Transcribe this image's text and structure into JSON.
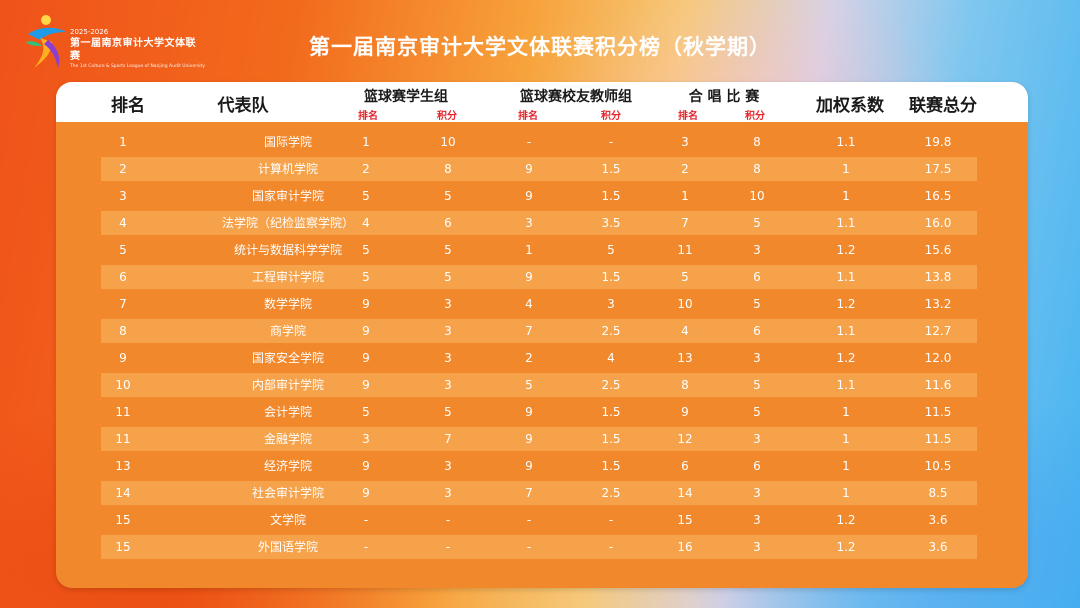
{
  "logo": {
    "years": "2025-2026",
    "name": "第一届南京审计大学文体联赛",
    "english": "The 1st Culture & Sports League of Nanjing Audit University"
  },
  "title": "第一届南京审计大学文体联赛积分榜（秋学期）",
  "headers": {
    "rank": "排名",
    "team": "代表队",
    "basketball_student": "篮球赛学生组",
    "basketball_alumni": "篮球赛校友教师组",
    "chorus": "合 唱 比 赛",
    "weight": "加权系数",
    "total": "联赛总分",
    "sub_rank": "排名",
    "sub_points": "积分"
  },
  "rows": [
    {
      "rank": "1",
      "team": "国际学院",
      "bs_rank": "1",
      "bs_pts": "10",
      "ba_rank": "-",
      "ba_pts": "-",
      "ch_rank": "3",
      "ch_pts": "8",
      "weight": "1.1",
      "total": "19.8"
    },
    {
      "rank": "2",
      "team": "计算机学院",
      "bs_rank": "2",
      "bs_pts": "8",
      "ba_rank": "9",
      "ba_pts": "1.5",
      "ch_rank": "2",
      "ch_pts": "8",
      "weight": "1",
      "total": "17.5"
    },
    {
      "rank": "3",
      "team": "国家审计学院",
      "bs_rank": "5",
      "bs_pts": "5",
      "ba_rank": "9",
      "ba_pts": "1.5",
      "ch_rank": "1",
      "ch_pts": "10",
      "weight": "1",
      "total": "16.5"
    },
    {
      "rank": "4",
      "team": "法学院（纪检监察学院）",
      "bs_rank": "4",
      "bs_pts": "6",
      "ba_rank": "3",
      "ba_pts": "3.5",
      "ch_rank": "7",
      "ch_pts": "5",
      "weight": "1.1",
      "total": "16.0"
    },
    {
      "rank": "5",
      "team": "统计与数据科学学院",
      "bs_rank": "5",
      "bs_pts": "5",
      "ba_rank": "1",
      "ba_pts": "5",
      "ch_rank": "11",
      "ch_pts": "3",
      "weight": "1.2",
      "total": "15.6"
    },
    {
      "rank": "6",
      "team": "工程审计学院",
      "bs_rank": "5",
      "bs_pts": "5",
      "ba_rank": "9",
      "ba_pts": "1.5",
      "ch_rank": "5",
      "ch_pts": "6",
      "weight": "1.1",
      "total": "13.8"
    },
    {
      "rank": "7",
      "team": "数学学院",
      "bs_rank": "9",
      "bs_pts": "3",
      "ba_rank": "4",
      "ba_pts": "3",
      "ch_rank": "10",
      "ch_pts": "5",
      "weight": "1.2",
      "total": "13.2"
    },
    {
      "rank": "8",
      "team": "商学院",
      "bs_rank": "9",
      "bs_pts": "3",
      "ba_rank": "7",
      "ba_pts": "2.5",
      "ch_rank": "4",
      "ch_pts": "6",
      "weight": "1.1",
      "total": "12.7"
    },
    {
      "rank": "9",
      "team": "国家安全学院",
      "bs_rank": "9",
      "bs_pts": "3",
      "ba_rank": "2",
      "ba_pts": "4",
      "ch_rank": "13",
      "ch_pts": "3",
      "weight": "1.2",
      "total": "12.0"
    },
    {
      "rank": "10",
      "team": "内部审计学院",
      "bs_rank": "9",
      "bs_pts": "3",
      "ba_rank": "5",
      "ba_pts": "2.5",
      "ch_rank": "8",
      "ch_pts": "5",
      "weight": "1.1",
      "total": "11.6"
    },
    {
      "rank": "11",
      "team": "会计学院",
      "bs_rank": "5",
      "bs_pts": "5",
      "ba_rank": "9",
      "ba_pts": "1.5",
      "ch_rank": "9",
      "ch_pts": "5",
      "weight": "1",
      "total": "11.5"
    },
    {
      "rank": "11",
      "team": "金融学院",
      "bs_rank": "3",
      "bs_pts": "7",
      "ba_rank": "9",
      "ba_pts": "1.5",
      "ch_rank": "12",
      "ch_pts": "3",
      "weight": "1",
      "total": "11.5"
    },
    {
      "rank": "13",
      "team": "经济学院",
      "bs_rank": "9",
      "bs_pts": "3",
      "ba_rank": "9",
      "ba_pts": "1.5",
      "ch_rank": "6",
      "ch_pts": "6",
      "weight": "1",
      "total": "10.5"
    },
    {
      "rank": "14",
      "team": "社会审计学院",
      "bs_rank": "9",
      "bs_pts": "3",
      "ba_rank": "7",
      "ba_pts": "2.5",
      "ch_rank": "14",
      "ch_pts": "3",
      "weight": "1",
      "total": "8.5"
    },
    {
      "rank": "15",
      "team": "文学院",
      "bs_rank": "-",
      "bs_pts": "-",
      "ba_rank": "-",
      "ba_pts": "-",
      "ch_rank": "15",
      "ch_pts": "3",
      "weight": "1.2",
      "total": "3.6"
    },
    {
      "rank": "15",
      "team": "外国语学院",
      "bs_rank": "-",
      "bs_pts": "-",
      "ba_rank": "-",
      "ba_pts": "-",
      "ch_rank": "16",
      "ch_pts": "3",
      "weight": "1.2",
      "total": "3.6"
    }
  ]
}
